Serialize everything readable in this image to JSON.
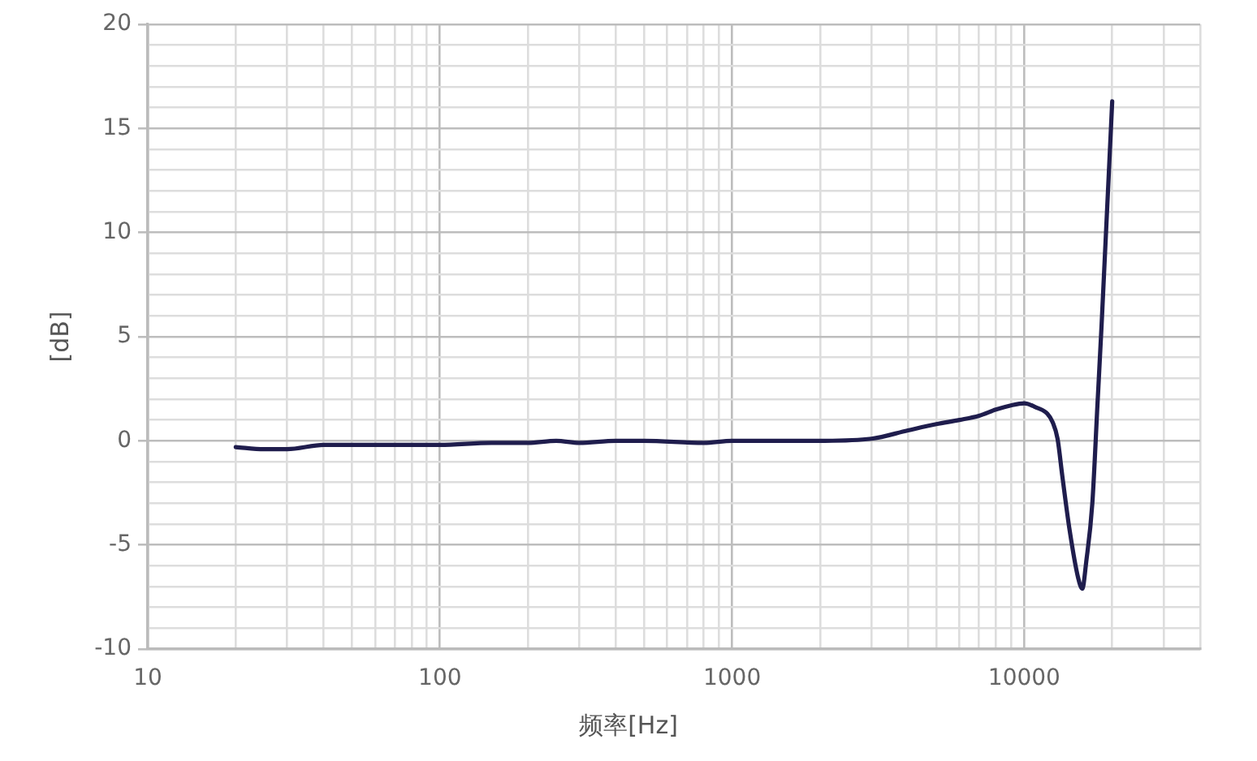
{
  "chart_data": {
    "type": "line",
    "xlabel": "频率[Hz]",
    "ylabel": "[dB]",
    "log": "x",
    "grid": true,
    "marker": "none",
    "line_style": "solid",
    "color": "#1f1d4d",
    "x": [
      20,
      25,
      30,
      40,
      50,
      70,
      100,
      150,
      200,
      250,
      300,
      400,
      500,
      800,
      1000,
      2000,
      3000,
      4000,
      5000,
      6000,
      7000,
      8000,
      9000,
      10000,
      11000,
      12000,
      12500,
      13000,
      13500,
      14300,
      15300,
      15800,
      16300,
      17100,
      17800,
      18400,
      20000
    ],
    "values": [
      -0.3,
      -0.4,
      -0.4,
      -0.2,
      -0.2,
      -0.2,
      -0.2,
      -0.1,
      -0.1,
      0.0,
      -0.1,
      0.0,
      0.0,
      -0.1,
      0.0,
      0.0,
      0.1,
      0.5,
      0.8,
      1.0,
      1.2,
      1.5,
      1.7,
      1.8,
      1.6,
      1.3,
      0.9,
      0.1,
      -1.7,
      -4.3,
      -6.6,
      -7.1,
      -5.8,
      -3.0,
      1.7,
      5.6,
      16.3
    ],
    "xlim": [
      10,
      40000
    ],
    "xticks": [
      10,
      {
        "value": 20,
        "label": null
      },
      {
        "value": 30,
        "label": null
      },
      {
        "value": 40,
        "label": null
      },
      {
        "value": 50,
        "label": null
      },
      {
        "value": 60,
        "label": null
      },
      {
        "value": 70,
        "label": null
      },
      {
        "value": 80,
        "label": null
      },
      {
        "value": 90,
        "label": null
      },
      100,
      {
        "value": 200,
        "label": null
      },
      {
        "value": 300,
        "label": null
      },
      {
        "value": 400,
        "label": null
      },
      {
        "value": 500,
        "label": null
      },
      {
        "value": 600,
        "label": null
      },
      {
        "value": 700,
        "label": null
      },
      {
        "value": 800,
        "label": null
      },
      {
        "value": 900,
        "label": null
      },
      1000,
      {
        "value": 2000,
        "label": null
      },
      {
        "value": 3000,
        "label": null
      },
      {
        "value": 4000,
        "label": null
      },
      {
        "value": 5000,
        "label": null
      },
      {
        "value": 6000,
        "label": null
      },
      {
        "value": 7000,
        "label": null
      },
      {
        "value": 8000,
        "label": null
      },
      {
        "value": 9000,
        "label": null
      },
      10000,
      {
        "value": 20000,
        "label": null
      },
      {
        "value": 30000,
        "label": null
      },
      {
        "value": 40000,
        "label": null
      }
    ],
    "ylim": [
      -10,
      20
    ],
    "yticks": [
      -10,
      {
        "value": -9,
        "label": null
      },
      {
        "value": -8,
        "label": null
      },
      {
        "value": -7,
        "label": null
      },
      {
        "value": -6,
        "label": null
      },
      -5,
      {
        "value": -4,
        "label": null
      },
      {
        "value": -3,
        "label": null
      },
      {
        "value": -2,
        "label": null
      },
      {
        "value": -1,
        "label": null
      },
      0,
      {
        "value": 1,
        "label": null
      },
      {
        "value": 2,
        "label": null
      },
      {
        "value": 3,
        "label": null
      },
      {
        "value": 4,
        "label": null
      },
      5,
      {
        "value": 6,
        "label": null
      },
      {
        "value": 7,
        "label": null
      },
      {
        "value": 8,
        "label": null
      },
      {
        "value": 9,
        "label": null
      },
      10,
      {
        "value": 11,
        "label": null
      },
      {
        "value": 12,
        "label": null
      },
      {
        "value": 13,
        "label": null
      },
      {
        "value": 14,
        "label": null
      },
      15,
      {
        "value": 16,
        "label": null
      },
      {
        "value": 17,
        "label": null
      },
      {
        "value": 18,
        "label": null
      },
      {
        "value": 19,
        "label": null
      },
      20
    ]
  }
}
